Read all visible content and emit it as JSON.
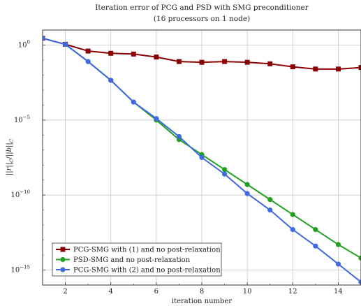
{
  "chart_data": {
    "type": "line",
    "title": "Iteration error of PCG and PSD with SMG preconditioner",
    "subtitle": "(16 processors on 1 node)",
    "xlabel": "iteration number",
    "ylabel": "||r||_C/||b||_C",
    "yscale": "log",
    "xlim": [
      1,
      15
    ],
    "ylim_log10": [
      -16,
      1
    ],
    "grid": true,
    "legend_position": "bottom-left",
    "x_ticks": [
      2,
      4,
      6,
      8,
      10,
      12,
      14
    ],
    "y_ticks": [
      {
        "exp": 0,
        "label": "10",
        "sup": "0"
      },
      {
        "exp": -5,
        "label": "10",
        "sup": "−5"
      },
      {
        "exp": -10,
        "label": "10",
        "sup": "−10"
      },
      {
        "exp": -15,
        "label": "10",
        "sup": "−15"
      }
    ],
    "series": [
      {
        "name": "PCG-SMG with (1) and no post-relaxation",
        "color": "#8b0000",
        "marker": "square",
        "x": [
          1,
          2,
          3,
          4,
          5,
          6,
          7,
          8,
          9,
          10,
          11,
          12,
          13,
          14,
          15
        ],
        "log10_y": [
          0.45,
          0.05,
          -0.4,
          -0.55,
          -0.6,
          -0.8,
          -1.1,
          -1.15,
          -1.1,
          -1.15,
          -1.25,
          -1.45,
          -1.6,
          -1.6,
          -1.5
        ]
      },
      {
        "name": "PSD-SMG and no post-relaxation",
        "color": "#22a022",
        "marker": "circle",
        "x": [
          1,
          2,
          3,
          4,
          5,
          6,
          7,
          8,
          9,
          10,
          11,
          12,
          13,
          14,
          15
        ],
        "log10_y": [
          0.45,
          0.05,
          -1.1,
          -2.35,
          -3.8,
          -5.0,
          -6.3,
          -7.3,
          -8.3,
          -9.3,
          -10.3,
          -11.3,
          -12.3,
          -13.3,
          -14.2
        ]
      },
      {
        "name": "PCG-SMG with (2) and no post-relaxation",
        "color": "#4169e1",
        "marker": "circle",
        "x": [
          1,
          2,
          3,
          4,
          5,
          6,
          7,
          8,
          9,
          10,
          11,
          12,
          13,
          14,
          15
        ],
        "log10_y": [
          0.45,
          0.05,
          -1.1,
          -2.35,
          -3.8,
          -4.9,
          -6.1,
          -7.5,
          -8.6,
          -9.9,
          -11.0,
          -12.3,
          -13.4,
          -14.6,
          -15.8
        ]
      }
    ]
  }
}
